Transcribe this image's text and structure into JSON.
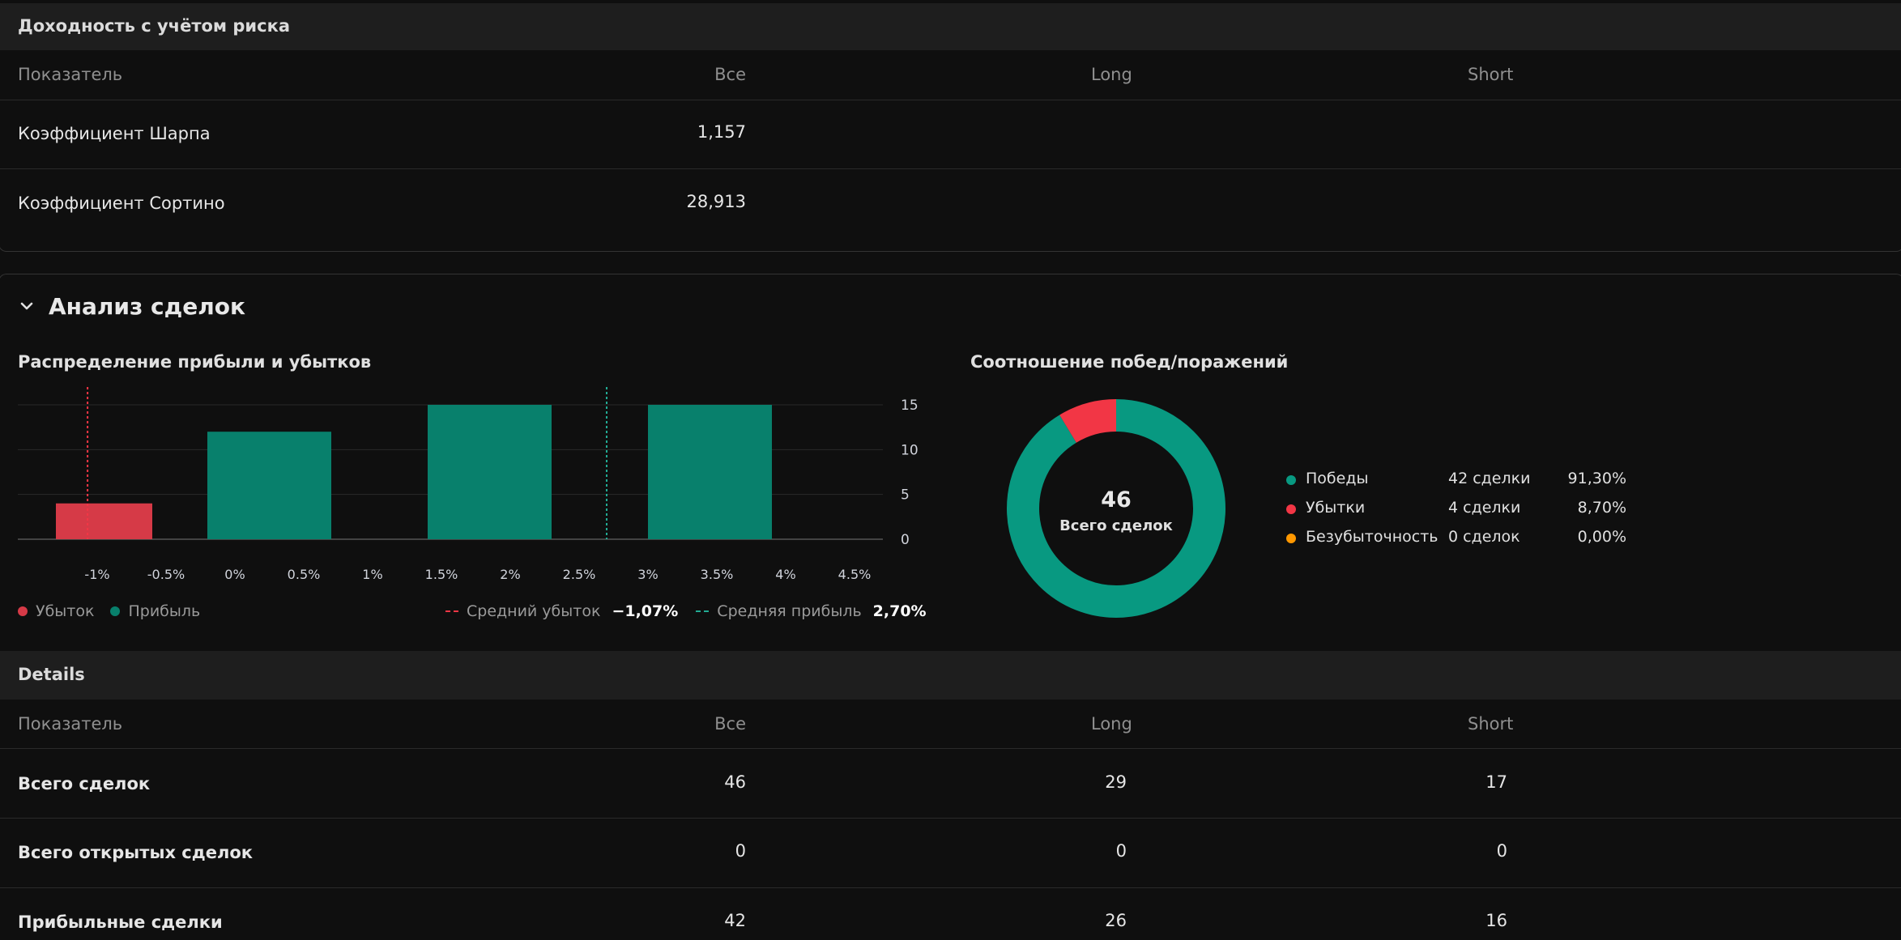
{
  "risk_section": {
    "title": "Доходность с учётом риска",
    "columns": [
      "Показатель",
      "Все",
      "Long",
      "Short"
    ],
    "rows": [
      {
        "label": "Коэффициент Шарпа",
        "all": "1,157",
        "long": "",
        "short": ""
      },
      {
        "label": "Коэффициент Сортино",
        "all": "28,913",
        "long": "",
        "short": ""
      }
    ]
  },
  "analysis": {
    "title": "Анализ сделок",
    "distribution_title": "Распределение прибыли и убытков",
    "winloss_title": "Соотношение побед/поражений",
    "legend": {
      "loss": "Убыток",
      "profit": "Прибыль",
      "avg_loss_label": "Средний убыток",
      "avg_loss_value": "−1,07%",
      "avg_profit_label": "Средняя прибыль",
      "avg_profit_value": "2,70%"
    },
    "donut": {
      "total": "46",
      "total_label": "Всего сделок",
      "items": [
        {
          "label": "Победы",
          "count": "42 сделки",
          "pct": "91,30%",
          "color": "#089981",
          "value": 42
        },
        {
          "label": "Убытки",
          "count": "4 сделки",
          "pct": "8,70%",
          "color": "#f23645",
          "value": 4
        },
        {
          "label": "Безубыточность",
          "count": "0 сделок",
          "pct": "0,00%",
          "color": "#ff9800",
          "value": 0
        }
      ]
    }
  },
  "details": {
    "title": "Details",
    "columns": [
      "Показатель",
      "Все",
      "Long",
      "Short"
    ],
    "rows": [
      {
        "label": "Всего сделок",
        "all": "46",
        "long": "29",
        "short": "17"
      },
      {
        "label": "Всего открытых сделок",
        "all": "0",
        "long": "0",
        "short": "0"
      },
      {
        "label": "Прибыльные сделки",
        "all": "42",
        "long": "26",
        "short": "16"
      }
    ]
  },
  "chart_data": {
    "type": "bar",
    "x_ticks": [
      "-1%",
      "-0.5%",
      "0%",
      "0.5%",
      "1%",
      "1.5%",
      "2%",
      "2.5%",
      "3%",
      "3.5%",
      "4%",
      "4.5%"
    ],
    "y_ticks": [
      "15",
      "10",
      "5",
      "0"
    ],
    "ylim": [
      0,
      15
    ],
    "bins": [
      {
        "from": -1.3,
        "to": -0.6,
        "value": 4,
        "series": "Убыток"
      },
      {
        "from": -0.2,
        "to": 0.7,
        "value": 12,
        "series": "Прибыль"
      },
      {
        "from": 1.4,
        "to": 2.3,
        "value": 15,
        "series": "Прибыль"
      },
      {
        "from": 3.0,
        "to": 3.9,
        "value": 15,
        "series": "Прибыль"
      }
    ],
    "avg_loss": -1.07,
    "avg_profit": 2.7,
    "colors": {
      "loss": "#d63a47",
      "profit": "#08806c",
      "avg_loss_line": "#f23645",
      "avg_profit_line": "#22ab94"
    },
    "grid": true
  }
}
